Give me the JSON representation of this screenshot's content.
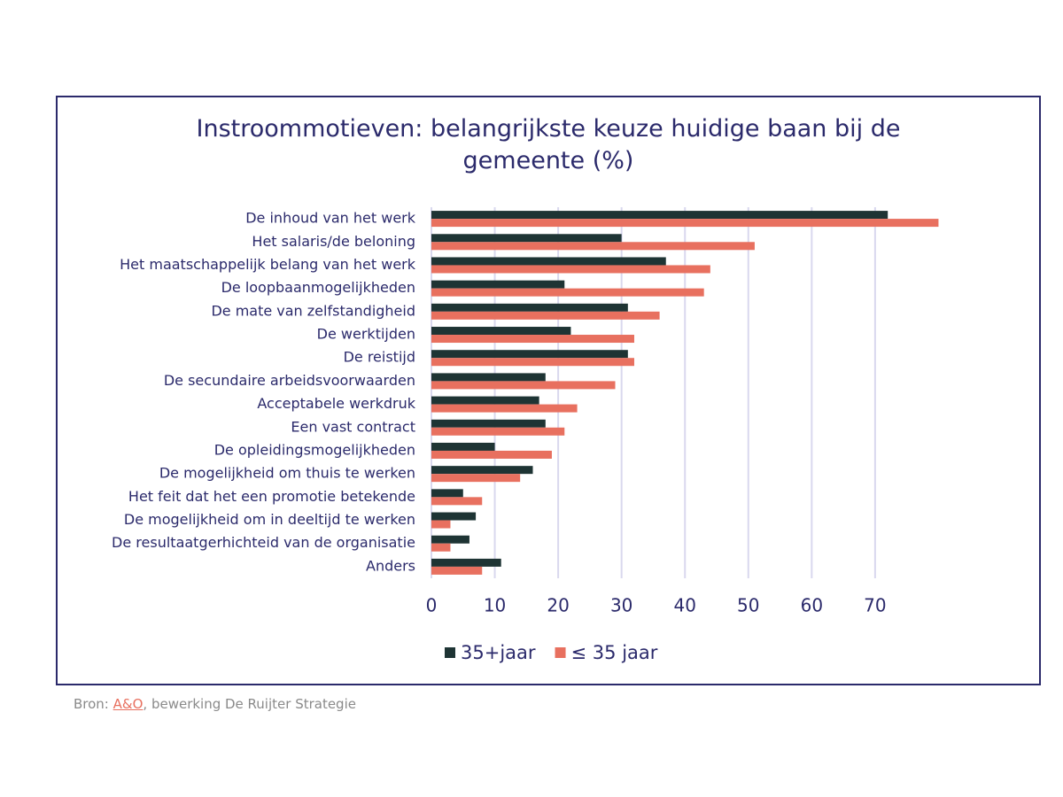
{
  "chart_data": {
    "type": "bar",
    "orientation": "horizontal",
    "title": "Instroommotieven: belangrijkste keuze huidige baan bij de gemeente (%)",
    "categories": [
      "De inhoud van het werk",
      "Het salaris/de beloning",
      "Het maatschappelijk belang van het werk",
      "De loopbaanmogelijkheden",
      "De mate van zelfstandigheid",
      "De werktijden",
      "De reistijd",
      "De secundaire arbeidsvoorwaarden",
      "Acceptabele werkdruk",
      "Een vast contract",
      "De opleidingsmogelijkheden",
      "De mogelijkheid om thuis te werken",
      "Het feit dat het een promotie betekende",
      "De mogelijkheid om in deeltijd te werken",
      "De resultaatgerhichteid van de organisatie",
      "Anders"
    ],
    "series": [
      {
        "name": "35+jaar",
        "color": "#1e3434",
        "values": [
          72,
          30,
          37,
          21,
          31,
          22,
          31,
          18,
          17,
          18,
          10,
          16,
          5,
          7,
          6,
          11
        ]
      },
      {
        "name": "≤ 35 jaar",
        "color": "#e8705f",
        "values": [
          80,
          51,
          44,
          43,
          36,
          32,
          32,
          29,
          23,
          21,
          19,
          14,
          8,
          3,
          3,
          8
        ]
      }
    ],
    "xlim": [
      0,
      90
    ],
    "xticks": [
      0,
      10,
      20,
      30,
      40,
      50,
      60,
      70
    ],
    "grid": true,
    "legend": "bottom"
  },
  "source": {
    "prefix": "Bron: ",
    "link": "A&O",
    "suffix": ", bewerking De Ruijter Strategie"
  }
}
